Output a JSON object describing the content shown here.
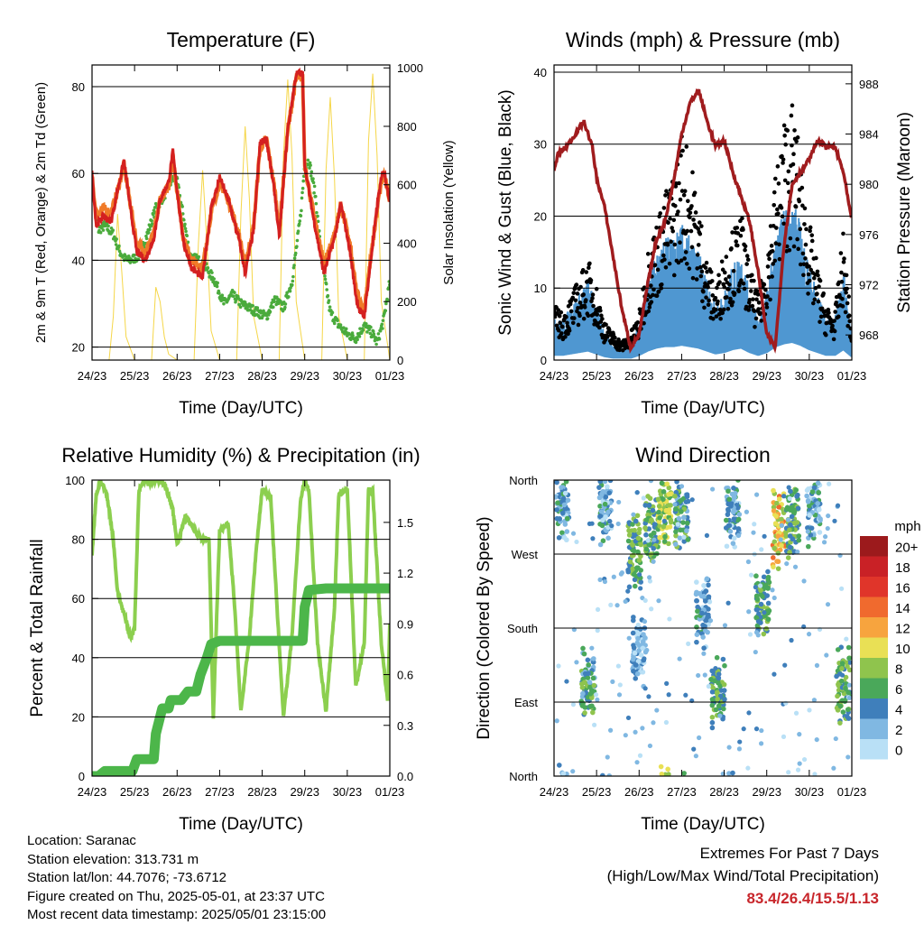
{
  "info": {
    "location": "Location: Saranac",
    "elevation": "Station elevation: 313.731 m",
    "latlon": "Station lat/lon: 44.7076; -73.6712",
    "created": "Figure created on Thu, 2025-05-01, at 23:37 UTC",
    "recent": "Most recent data timestamp: 2025/05/01 23:15:00"
  },
  "extremes": {
    "title": "Extremes For Past 7 Days",
    "subtitle": "(High/Low/Max Wind/Total Precipitation)",
    "values": "83.4/26.4/15.5/1.13",
    "color": "#c8262b"
  },
  "colors": {
    "temp2m": "#d42020",
    "temp9m": "#f07a28",
    "dewpoint": "#4aab3c",
    "solar": "#f5d648",
    "gust": "#000000",
    "wind": "#4f97d1",
    "pressure": "#a01c1e",
    "rh": "#8ccf4f",
    "precip": "#4cb64a"
  },
  "chart_data": [
    {
      "type": "line",
      "title": "Temperature (F)",
      "xlabel": "Time (Day/UTC)",
      "ylabel": "2m & 9m T (Red, Orange) & 2m Td (Green)",
      "y2label": "Solar Insolation (Yellow)",
      "x_ticks": [
        "24/23",
        "25/23",
        "26/23",
        "27/23",
        "28/23",
        "29/23",
        "30/23",
        "01/23"
      ],
      "xlim": [
        0,
        7
      ],
      "ylim": [
        17,
        85
      ],
      "y_ticks": [
        20,
        40,
        60,
        80
      ],
      "y2lim": [
        0,
        1010
      ],
      "y2_ticks": [
        0,
        200,
        400,
        600,
        800,
        1000
      ],
      "grid": true,
      "series": [
        {
          "name": "2m T",
          "color": "#d42020",
          "x": [
            0,
            0.1,
            0.25,
            0.45,
            0.6,
            0.75,
            0.9,
            1.05,
            1.25,
            1.45,
            1.6,
            1.8,
            1.9,
            2.0,
            2.15,
            2.35,
            2.6,
            2.8,
            3.0,
            3.2,
            3.45,
            3.6,
            3.8,
            3.95,
            4.1,
            4.3,
            4.4,
            4.6,
            4.8,
            4.95,
            5.0,
            5.2,
            5.45,
            5.7,
            5.85,
            6.05,
            6.2,
            6.3,
            6.4,
            6.6,
            6.75,
            6.85,
            7.0
          ],
          "y": [
            60,
            48,
            50,
            49,
            56,
            63,
            52,
            42,
            40,
            45,
            54,
            58,
            65,
            56,
            44,
            38,
            36,
            52,
            59,
            54,
            45,
            37,
            47,
            67,
            68,
            55,
            45,
            70,
            83,
            83,
            62,
            50,
            37,
            45,
            53,
            43,
            32,
            28,
            27,
            44,
            56,
            61,
            54
          ]
        },
        {
          "name": "9m T",
          "color": "#f07a28",
          "x": [
            0,
            0.1,
            0.25,
            0.45,
            0.6,
            0.75,
            0.9,
            1.05,
            1.25,
            1.45,
            1.6,
            1.8,
            1.9,
            2.0,
            2.15,
            2.35,
            2.6,
            2.8,
            3.0,
            3.2,
            3.45,
            3.6,
            3.8,
            3.95,
            4.1,
            4.3,
            4.4,
            4.6,
            4.8,
            4.95,
            5.0,
            5.2,
            5.45,
            5.7,
            5.85,
            6.05,
            6.2,
            6.3,
            6.4,
            6.6,
            6.75,
            6.85,
            7.0
          ],
          "y": [
            59,
            50,
            52,
            51,
            56,
            62,
            53,
            44,
            42,
            46,
            54,
            57,
            64,
            56,
            45,
            40,
            38,
            51,
            58,
            54,
            46,
            39,
            48,
            66,
            68,
            56,
            47,
            70,
            82,
            82,
            62,
            51,
            39,
            46,
            53,
            44,
            34,
            30,
            29,
            44,
            55,
            60,
            54
          ]
        },
        {
          "name": "2m Td",
          "color": "#4aab3c",
          "x": [
            0,
            0.15,
            0.3,
            0.5,
            0.65,
            0.8,
            0.9,
            1.1,
            1.3,
            1.5,
            1.7,
            1.9,
            2.0,
            2.15,
            2.3,
            2.5,
            2.7,
            2.9,
            3.1,
            3.3,
            3.5,
            3.7,
            3.9,
            4.1,
            4.3,
            4.5,
            4.7,
            4.9,
            5.0,
            5.1,
            5.25,
            5.4,
            5.6,
            5.8,
            6.0,
            6.2,
            6.4,
            6.6,
            6.7,
            6.85,
            7.0
          ],
          "y": [
            57,
            47,
            48,
            46,
            42,
            40,
            40,
            41,
            46,
            52,
            55,
            59,
            58,
            50,
            41,
            40,
            38,
            35,
            30,
            32,
            30,
            29,
            28,
            27,
            31,
            29,
            35,
            50,
            62,
            63,
            55,
            40,
            28,
            25,
            23,
            22,
            25,
            23,
            21,
            26,
            35
          ]
        },
        {
          "name": "Solar",
          "color": "#f5d648",
          "axis": "right",
          "x": [
            0,
            0.1,
            0.2,
            0.3,
            0.4,
            0.5,
            0.6,
            0.7,
            0.8,
            1.0,
            1.1,
            1.2,
            1.3,
            1.4,
            1.5,
            1.6,
            1.7,
            1.8,
            2.0,
            2.1,
            2.2,
            2.3,
            2.4,
            2.5,
            2.6,
            2.7,
            2.8,
            3.0,
            3.1,
            3.2,
            3.3,
            3.4,
            3.5,
            3.6,
            3.7,
            3.8,
            4.0,
            4.1,
            4.2,
            4.3,
            4.4,
            4.5,
            4.6,
            4.7,
            4.8,
            5.0,
            5.1,
            5.2,
            5.3,
            5.4,
            5.5,
            5.6,
            5.7,
            5.8,
            6.0,
            6.1,
            6.2,
            6.3,
            6.4,
            6.5,
            6.6,
            6.7,
            6.8,
            7.0
          ],
          "y": [
            0,
            0,
            0,
            0,
            0,
            150,
            500,
            300,
            80,
            0,
            0,
            0,
            0,
            0,
            250,
            200,
            80,
            20,
            0,
            0,
            0,
            0,
            0,
            400,
            650,
            400,
            100,
            0,
            0,
            0,
            0,
            0,
            500,
            800,
            550,
            150,
            0,
            0,
            0,
            0,
            0,
            700,
            960,
            700,
            200,
            0,
            0,
            0,
            0,
            0,
            650,
            900,
            620,
            150,
            0,
            0,
            0,
            0,
            0,
            750,
            980,
            700,
            200,
            0
          ]
        }
      ]
    },
    {
      "type": "line",
      "title": "Winds (mph) & Pressure (mb)",
      "xlabel": "Time (Day/UTC)",
      "ylabel": "Sonic Wind & Gust (Blue, Black)",
      "y2label": "Station Pressure (Maroon)",
      "x_ticks": [
        "24/23",
        "25/23",
        "26/23",
        "27/23",
        "28/23",
        "29/23",
        "30/23",
        "01/23"
      ],
      "xlim": [
        0,
        7
      ],
      "ylim": [
        0,
        41
      ],
      "y_ticks": [
        0,
        10,
        20,
        30,
        40
      ],
      "y2lim": [
        966,
        989.5
      ],
      "y2_ticks": [
        968,
        972,
        976,
        980,
        984,
        988
      ],
      "grid": true,
      "series": [
        {
          "name": "Gust",
          "color": "#000000",
          "x": [
            0,
            0.2,
            0.4,
            0.6,
            0.8,
            1.0,
            1.2,
            1.4,
            1.6,
            1.8,
            2.0,
            2.2,
            2.4,
            2.6,
            2.8,
            3.0,
            3.2,
            3.4,
            3.6,
            3.8,
            4.0,
            4.2,
            4.4,
            4.6,
            4.8,
            5.0,
            5.2,
            5.4,
            5.6,
            5.8,
            6.0,
            6.2,
            6.4,
            6.6,
            6.8,
            7.0
          ],
          "y": [
            6,
            5,
            7,
            9,
            11,
            8,
            4,
            3,
            2,
            3,
            5,
            12,
            15,
            18,
            20,
            25,
            22,
            17,
            11,
            8,
            12,
            14,
            16,
            10,
            7,
            12,
            20,
            26,
            28,
            22,
            15,
            10,
            6,
            5,
            14,
            3
          ]
        },
        {
          "name": "Wind",
          "color": "#4f97d1",
          "x": [
            0,
            0.2,
            0.4,
            0.6,
            0.8,
            1.0,
            1.2,
            1.4,
            1.6,
            1.8,
            2.0,
            2.2,
            2.4,
            2.6,
            2.8,
            3.0,
            3.2,
            3.4,
            3.6,
            3.8,
            4.0,
            4.2,
            4.4,
            4.6,
            4.8,
            5.0,
            5.2,
            5.4,
            5.6,
            5.8,
            6.0,
            6.2,
            6.4,
            6.6,
            6.8,
            7.0
          ],
          "y": [
            3,
            3,
            4,
            5,
            6,
            4,
            2,
            1,
            1,
            1,
            3,
            6,
            8,
            9,
            9,
            10,
            9,
            8,
            6,
            4,
            5,
            7,
            8,
            5,
            3,
            5,
            9,
            11,
            12,
            10,
            7,
            5,
            3,
            3,
            7,
            2
          ]
        },
        {
          "name": "Pressure",
          "color": "#a01c1e",
          "axis": "right",
          "x": [
            0,
            0.1,
            0.3,
            0.5,
            0.7,
            0.9,
            1.0,
            1.2,
            1.4,
            1.6,
            1.8,
            2.0,
            2.2,
            2.4,
            2.6,
            2.8,
            3.0,
            3.2,
            3.4,
            3.6,
            3.8,
            4.0,
            4.2,
            4.4,
            4.6,
            4.8,
            5.0,
            5.2,
            5.4,
            5.6,
            5.8,
            6.0,
            6.2,
            6.4,
            6.6,
            6.8,
            7.0
          ],
          "y": [
            981,
            982.5,
            983,
            984,
            985,
            983,
            980.5,
            978,
            974,
            970,
            967,
            968,
            972,
            975.5,
            977,
            980,
            984,
            986.5,
            987.5,
            985,
            983,
            983.5,
            981,
            979,
            977,
            973,
            968,
            967,
            975,
            980,
            981,
            982,
            983.5,
            983,
            983,
            981,
            977
          ]
        }
      ]
    },
    {
      "type": "line",
      "title": "Relative Humidity (%) & Precipitation (in)",
      "xlabel": "Time (Day/UTC)",
      "ylabel": "Percent & Total Rainfall",
      "x_ticks": [
        "24/23",
        "25/23",
        "26/23",
        "27/23",
        "28/23",
        "29/23",
        "30/23",
        "01/23"
      ],
      "xlim": [
        0,
        7
      ],
      "ylim": [
        0,
        100
      ],
      "y_ticks": [
        0,
        20,
        40,
        60,
        80,
        100
      ],
      "y2lim": [
        0,
        1.75
      ],
      "y2_ticks": [
        0.0,
        0.3,
        0.6,
        0.9,
        1.2,
        1.5
      ],
      "grid": true,
      "series": [
        {
          "name": "RH",
          "color": "#8ccf4f",
          "x": [
            0,
            0.1,
            0.2,
            0.35,
            0.5,
            0.6,
            0.75,
            0.9,
            1.0,
            1.1,
            1.2,
            1.35,
            1.5,
            1.7,
            1.9,
            2.0,
            2.2,
            2.4,
            2.6,
            2.75,
            2.85,
            3.0,
            3.2,
            3.35,
            3.5,
            3.7,
            3.85,
            4.0,
            4.2,
            4.35,
            4.5,
            4.7,
            4.9,
            5.0,
            5.1,
            5.3,
            5.5,
            5.7,
            5.8,
            6.0,
            6.2,
            6.4,
            6.5,
            6.6,
            6.8,
            6.95,
            7.0
          ],
          "y": [
            75,
            95,
            100,
            95,
            80,
            62,
            55,
            47,
            50,
            96,
            100,
            99,
            100,
            99,
            90,
            78,
            88,
            83,
            80,
            80,
            20,
            83,
            85,
            58,
            22,
            47,
            75,
            97,
            94,
            57,
            20,
            47,
            93,
            100,
            96,
            45,
            22,
            57,
            95,
            97,
            30,
            45,
            97,
            96,
            45,
            25,
            52
          ]
        },
        {
          "name": "Precipitation",
          "color": "#4cb64a",
          "axis": "right",
          "x": [
            0,
            0.15,
            0.3,
            0.5,
            0.75,
            0.95,
            1.05,
            1.3,
            1.45,
            1.5,
            1.65,
            1.8,
            1.85,
            2.1,
            2.25,
            2.45,
            2.55,
            2.7,
            2.8,
            3.0,
            3.5,
            4.0,
            4.5,
            4.8,
            4.95,
            5.0,
            5.1,
            5.5,
            6.0,
            6.5,
            7.0
          ],
          "y": [
            0,
            0,
            0.03,
            0.03,
            0.03,
            0.03,
            0.1,
            0.1,
            0.1,
            0.25,
            0.4,
            0.4,
            0.45,
            0.45,
            0.5,
            0.5,
            0.6,
            0.7,
            0.78,
            0.8,
            0.8,
            0.8,
            0.8,
            0.8,
            0.8,
            1.0,
            1.1,
            1.11,
            1.11,
            1.11,
            1.11
          ]
        }
      ]
    },
    {
      "type": "scatter",
      "title": "Wind Direction",
      "xlabel": "Time (Day/UTC)",
      "ylabel": "Direction (Colored By Speed)",
      "x_ticks": [
        "24/23",
        "25/23",
        "26/23",
        "27/23",
        "28/23",
        "29/23",
        "30/23",
        "01/23"
      ],
      "xlim": [
        0,
        7
      ],
      "ylim": [
        0,
        360
      ],
      "y_tick_labels": [
        "North",
        "East",
        "South",
        "West",
        "North"
      ],
      "y_tick_values": [
        0,
        90,
        180,
        270,
        360
      ],
      "grid": true,
      "legend_title": "mph",
      "legend": [
        "20+",
        "18",
        "16",
        "14",
        "12",
        "10",
        "8",
        "6",
        "4",
        "2",
        "0"
      ],
      "legend_colors": [
        "#9c1a1c",
        "#c92126",
        "#e0352a",
        "#f06a2e",
        "#f7a43e",
        "#e9e055",
        "#8fc44d",
        "#4aa85a",
        "#3f7fbb",
        "#80b8e2",
        "#b9e0f6"
      ],
      "clusters": [
        {
          "x": 0.2,
          "dir": 330,
          "spd": 3
        },
        {
          "x": 0.8,
          "dir": 112,
          "spd": 5
        },
        {
          "x": 1.2,
          "dir": 320,
          "spd": 3
        },
        {
          "x": 1.9,
          "dir": 275,
          "spd": 6
        },
        {
          "x": 2.0,
          "dir": 150,
          "spd": 2
        },
        {
          "x": 2.3,
          "dir": 300,
          "spd": 6
        },
        {
          "x": 2.6,
          "dir": 325,
          "spd": 8
        },
        {
          "x": 3.0,
          "dir": 320,
          "spd": 5
        },
        {
          "x": 3.5,
          "dir": 200,
          "spd": 3
        },
        {
          "x": 3.85,
          "dir": 100,
          "spd": 6
        },
        {
          "x": 4.2,
          "dir": 320,
          "spd": 3
        },
        {
          "x": 4.9,
          "dir": 210,
          "spd": 6
        },
        {
          "x": 5.3,
          "dir": 300,
          "spd": 11
        },
        {
          "x": 5.6,
          "dir": 310,
          "spd": 6
        },
        {
          "x": 6.1,
          "dir": 320,
          "spd": 3
        },
        {
          "x": 6.8,
          "dir": 110,
          "spd": 6
        }
      ]
    }
  ]
}
